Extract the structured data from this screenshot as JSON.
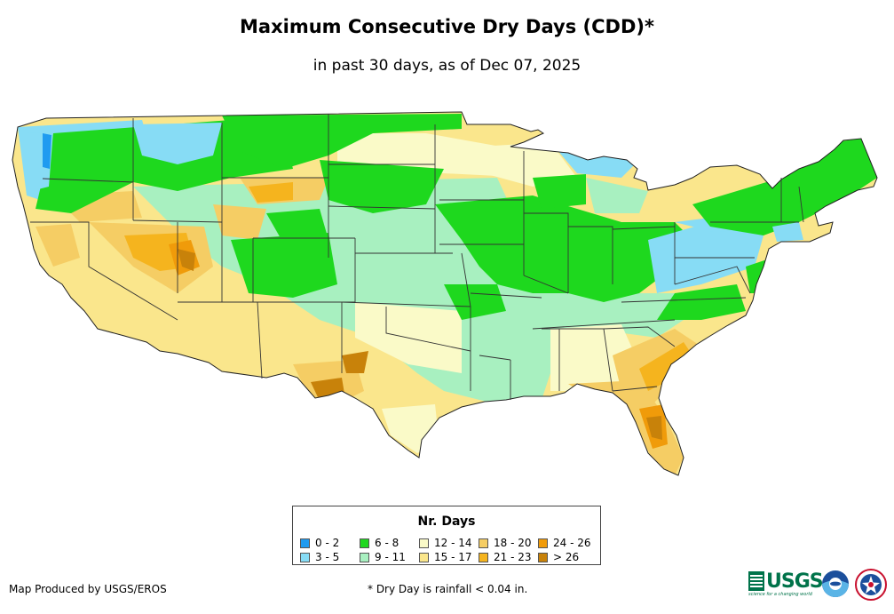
{
  "title": "Maximum Consecutive Dry Days (CDD)*",
  "subtitle": "in past 30 days, as of Dec 07, 2025",
  "legend": {
    "title": "Nr. Days",
    "items": [
      {
        "label": "0 - 2",
        "color": "#1f9bf0"
      },
      {
        "label": "3 - 5",
        "color": "#87dcf5"
      },
      {
        "label": "6 - 8",
        "color": "#1ed81e"
      },
      {
        "label": "9 - 11",
        "color": "#a8f0c0"
      },
      {
        "label": "12 - 14",
        "color": "#fafac8"
      },
      {
        "label": "15 - 17",
        "color": "#fae68c"
      },
      {
        "label": "18 - 20",
        "color": "#f5cd64"
      },
      {
        "label": "21 - 23",
        "color": "#f5b41e"
      },
      {
        "label": "24 - 26",
        "color": "#f09b0a"
      },
      {
        "label": "> 26",
        "color": "#c8820a"
      }
    ]
  },
  "credit": "Map Produced by USGS/EROS",
  "footnote": "* Dry Day is rainfall < 0.04 in.",
  "logos": {
    "usgs_text": "USGS",
    "usgs_tagline": "science for a changing world"
  },
  "icons": [
    "usgs-logo-icon",
    "noaa-logo-icon",
    "nws-logo-icon"
  ]
}
